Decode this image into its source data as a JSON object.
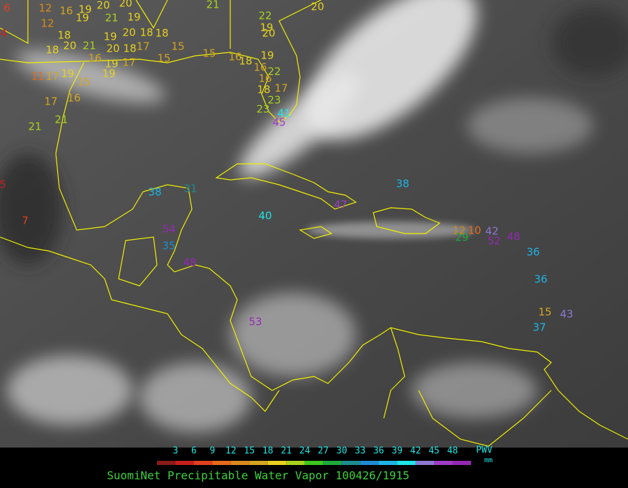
{
  "map": {
    "title": "SuomiNet Precipitable Water Vapor 100426/1915",
    "legend": {
      "unit_top": "PWV",
      "unit_bottom": "mm",
      "ticks": [
        3,
        6,
        9,
        12,
        15,
        18,
        21,
        24,
        27,
        30,
        33,
        36,
        39,
        42,
        45,
        48
      ],
      "colors": [
        "#8b1a1a",
        "#c81e1e",
        "#e0401e",
        "#e66a1a",
        "#d98a1e",
        "#d4a520",
        "#e6d21e",
        "#a8d21e",
        "#3cc81e",
        "#1eaa3c",
        "#1e8c8c",
        "#1e8cd2",
        "#1eb4e6",
        "#1ee6e6",
        "#8c78d2",
        "#a03cc8",
        "#9628b4"
      ]
    },
    "stations": [
      6,
      12,
      16,
      19,
      20,
      20,
      19,
      12,
      19,
      21,
      4,
      18,
      19,
      20,
      18,
      18,
      18,
      20,
      21,
      20,
      18,
      17,
      15,
      15,
      15,
      16,
      18,
      19,
      16,
      19,
      17,
      11,
      17,
      19,
      15,
      19,
      16,
      22,
      16,
      18,
      17,
      17,
      16,
      23,
      23,
      41,
      21,
      21,
      45,
      5,
      7,
      38,
      31,
      38,
      40,
      47,
      19,
      20,
      22,
      21,
      20,
      54,
      35,
      48,
      53,
      12,
      10,
      42,
      48,
      29,
      52,
      36,
      36,
      15,
      43,
      37
    ]
  }
}
